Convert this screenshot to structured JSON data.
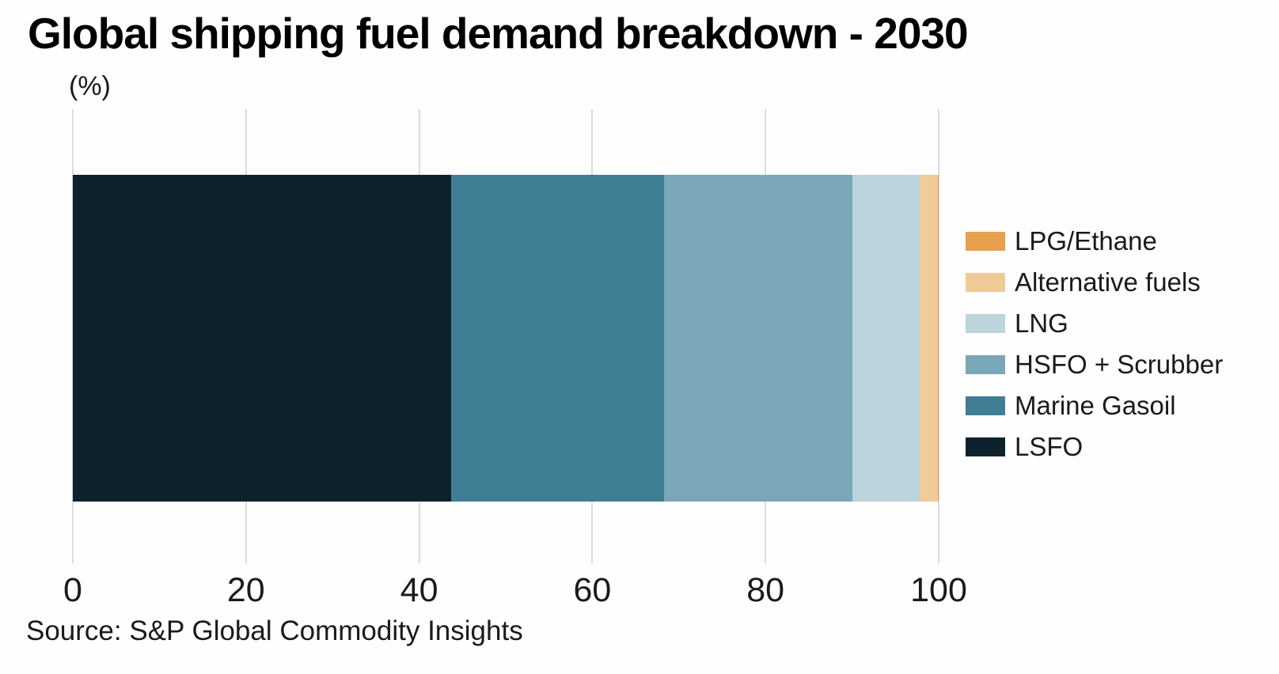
{
  "title": "Global shipping fuel demand breakdown - 2030",
  "unit_label": "(%)",
  "source": "Source: S&P Global Commodity Insights",
  "chart_data": {
    "type": "bar",
    "orientation": "horizontal",
    "stacked": true,
    "title": "Global shipping fuel demand breakdown - 2030",
    "xlabel": "",
    "ylabel": "(%)",
    "unit": "%",
    "xlim": [
      0,
      100
    ],
    "x_ticks": [
      "0",
      "20",
      "40",
      "60",
      "80",
      "100"
    ],
    "x_tick_values": [
      0,
      20,
      40,
      60,
      80,
      100
    ],
    "grid": "vertical",
    "gridline_color": "#dcdcda",
    "legend_position": "right",
    "segments_left_to_right": [
      {
        "name": "LSFO",
        "value": 43.7,
        "color": "#0d222c"
      },
      {
        "name": "Marine Gasoil",
        "value": 24.6,
        "color": "#407e96"
      },
      {
        "name": "HSFO + Scrubber",
        "value": 21.7,
        "color": "#7aa7b8"
      },
      {
        "name": "LNG",
        "value": 7.8,
        "color": "#bcd4dc"
      },
      {
        "name": "Alternative fuels",
        "value": 2.1,
        "color": "#f1cb97"
      },
      {
        "name": "LPG/Ethane",
        "value": 0.1,
        "color": "#e6a04e"
      }
    ],
    "legend_top_to_bottom": [
      "LPG/Ethane",
      "Alternative fuels",
      "LNG",
      "HSFO + Scrubber",
      "Marine Gasoil",
      "LSFO"
    ]
  }
}
